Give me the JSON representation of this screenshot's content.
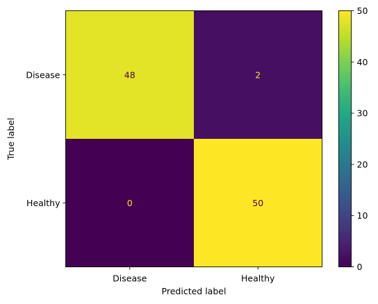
{
  "chart_data": {
    "type": "heatmap",
    "title": "",
    "xlabel": "Predicted label",
    "ylabel": "True label",
    "x_categories": [
      "Disease",
      "Healthy"
    ],
    "y_categories": [
      "Disease",
      "Healthy"
    ],
    "values": [
      [
        48,
        2
      ],
      [
        0,
        50
      ]
    ],
    "value_labels": [
      [
        "48",
        "2"
      ],
      [
        "0",
        "50"
      ]
    ],
    "colormap": "viridis",
    "colorbar": {
      "range": [
        0,
        50
      ],
      "ticks": [
        0,
        10,
        20,
        30,
        40,
        50
      ],
      "tick_labels": [
        "0",
        "10",
        "20",
        "30",
        "40",
        "50"
      ]
    },
    "text_colors": {
      "on_dark": "#fde725",
      "on_light": "#440154"
    },
    "grid": false,
    "legend": "colorbar-right"
  }
}
